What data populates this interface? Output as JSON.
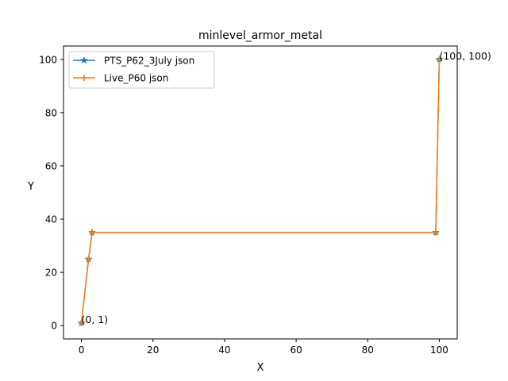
{
  "chart_data": {
    "type": "line",
    "title": "minlevel_armor_metal",
    "xlabel": "X",
    "ylabel": "Y",
    "xlim": [
      -5,
      105
    ],
    "ylim": [
      -5,
      105
    ],
    "xticks": [
      0,
      20,
      40,
      60,
      80,
      100
    ],
    "yticks": [
      0,
      20,
      40,
      60,
      80,
      100
    ],
    "grid": false,
    "legend_position": "upper-left",
    "series": [
      {
        "name": "PTS_P62_3July json",
        "color": "#1f77b4",
        "marker": "star",
        "x": [
          0,
          2,
          3,
          99,
          100
        ],
        "y": [
          1,
          25,
          35,
          35,
          100
        ]
      },
      {
        "name": "Live_P60 json",
        "color": "#ff7f0e",
        "marker": "plus",
        "x": [
          0,
          2,
          3,
          99,
          100
        ],
        "y": [
          1,
          25,
          35,
          35,
          100
        ]
      }
    ],
    "annotations": [
      {
        "text": "(0, 1)",
        "x": 0,
        "y": 1
      },
      {
        "text": "(100, 100)",
        "x": 100,
        "y": 100
      }
    ]
  }
}
